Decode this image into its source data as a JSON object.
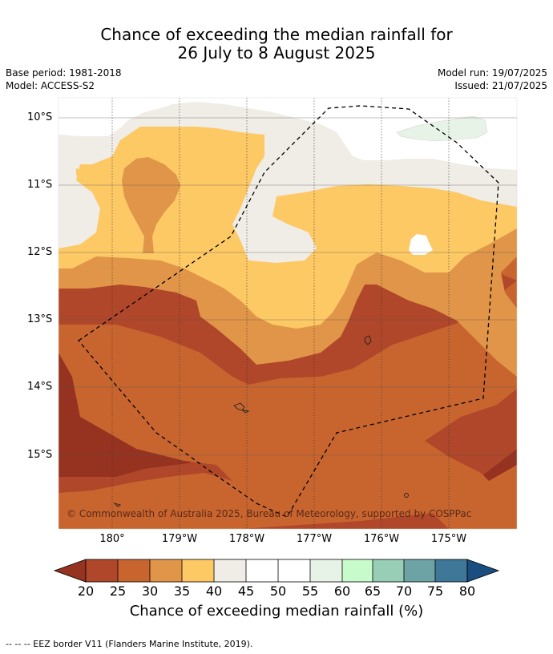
{
  "title": {
    "line1": "Chance of exceeding the median rainfall for",
    "line2": "26 July to 8 August 2025"
  },
  "meta": {
    "base_period": "Base period: 1981-2018",
    "model": "Model: ACCESS-S2",
    "model_run": "Model run: 19/07/2025",
    "issued": "Issued: 21/07/2025"
  },
  "map": {
    "lat_labels": [
      "10°S",
      "11°S",
      "12°S",
      "13°S",
      "14°S",
      "15°S"
    ],
    "lon_labels": [
      "180°",
      "179°W",
      "178°W",
      "177°W",
      "176°W",
      "175°W"
    ],
    "copyright": "© Commonwealth of Australia 2025, Bureau of Meteorology, supported by COSPPac"
  },
  "colorbar": {
    "ticks": [
      "20",
      "25",
      "30",
      "35",
      "40",
      "45",
      "50",
      "55",
      "60",
      "65",
      "70",
      "75",
      "80"
    ],
    "label": "Chance of exceeding median rainfall (%)",
    "colors": {
      "under20": "#953320",
      "c20_25": "#b0472a",
      "c25_30": "#c8652f",
      "c30_35": "#e09548",
      "c35_40": "#fdc965",
      "c40_45": "#f0ece6",
      "c45_50": "#ffffff",
      "c50_55": "#ffffff",
      "c55_60": "#e8f3e8",
      "c60_65": "#c7fbcb",
      "c65_70": "#99ceb6",
      "c70_75": "#6da3a5",
      "c75_80": "#3e7797",
      "over80": "#1a4e80"
    }
  },
  "footer": {
    "legend": "--  --  -- EEZ border V11 (Flanders Marine Institute, 2019)."
  }
}
